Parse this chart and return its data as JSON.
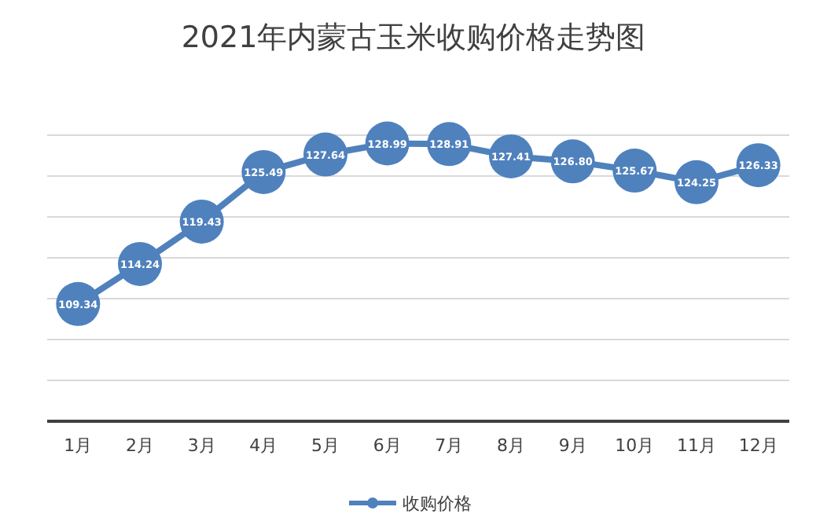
{
  "chart_data": {
    "type": "line",
    "title": "2021年内蒙古玉米收购价格走势图",
    "categories": [
      "1月",
      "2月",
      "3月",
      "4月",
      "5月",
      "6月",
      "7月",
      "8月",
      "9月",
      "10月",
      "11月",
      "12月"
    ],
    "series": [
      {
        "name": "收购价格",
        "color": "#4f81bd",
        "values": [
          109.34,
          114.24,
          119.43,
          125.49,
          127.64,
          128.99,
          128.91,
          127.41,
          126.8,
          125.67,
          124.25,
          126.33
        ],
        "value_labels": [
          "109.34",
          "114.24",
          "119.43",
          "125.49",
          "127.64",
          "128.99",
          "128.91",
          "127.41",
          "126.80",
          "125.67",
          "124.25",
          "126.33"
        ]
      }
    ],
    "ylim": [
      95,
      130
    ],
    "yticks": [
      {
        "value": 95,
        "label": null
      },
      {
        "value": 100,
        "label": null
      },
      {
        "value": 105,
        "label": null
      },
      {
        "value": 110,
        "label": null
      },
      {
        "value": 115,
        "label": null
      },
      {
        "value": 120,
        "label": null
      },
      {
        "value": 125,
        "label": null
      },
      {
        "value": 130,
        "label": null
      }
    ],
    "grid": "y",
    "legend": "bottom",
    "marker": "circle",
    "line_style": "solid"
  }
}
